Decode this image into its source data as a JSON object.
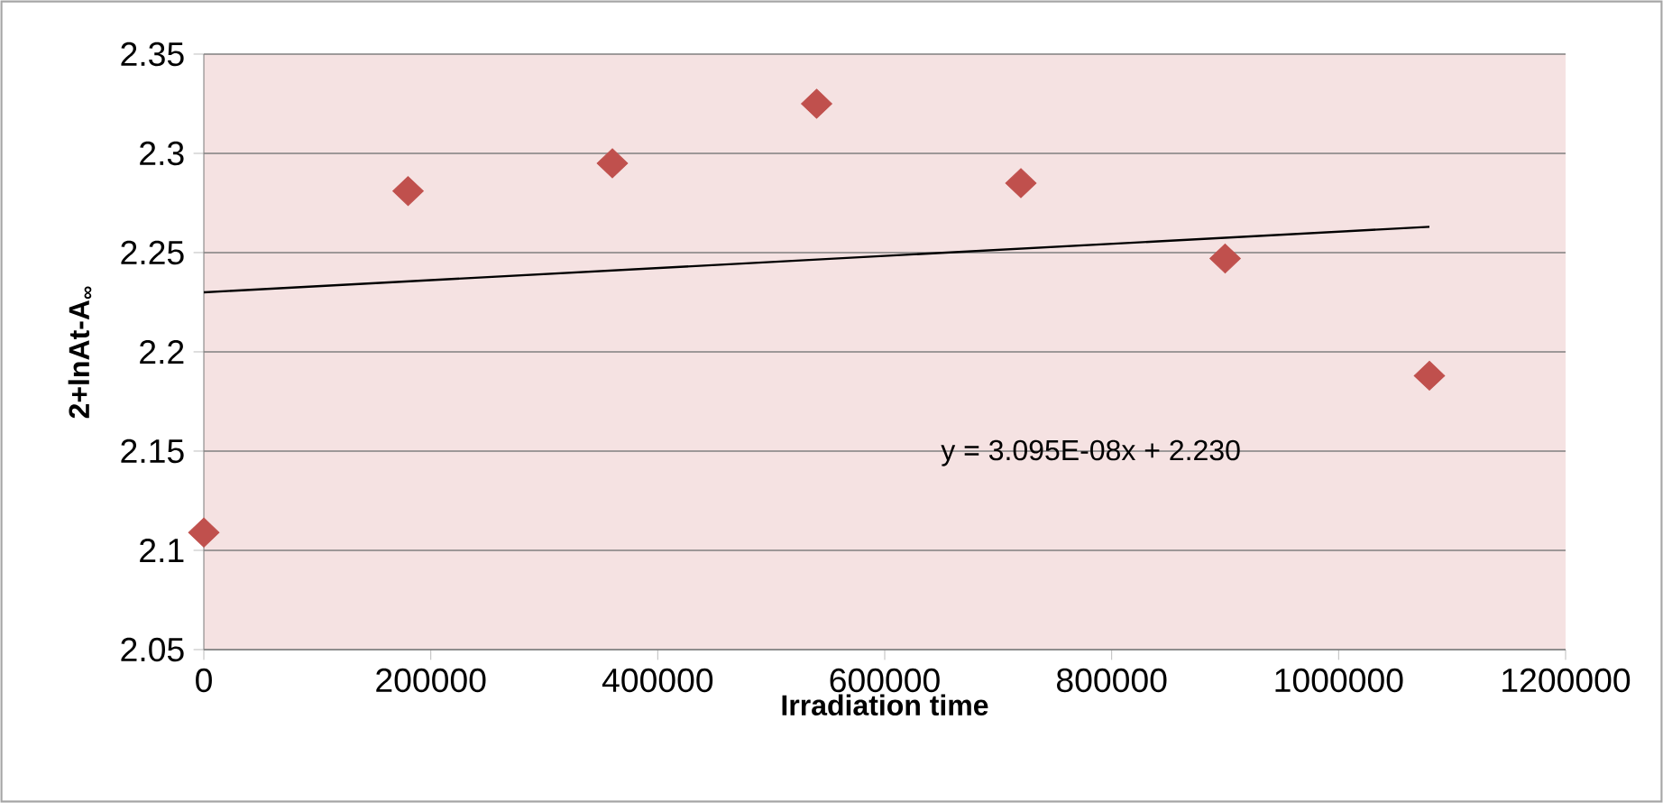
{
  "chart_data": {
    "type": "scatter",
    "xlabel": "Irradiation time",
    "ylabel": "2+lnAt-A$_{∞}$",
    "x": [
      0,
      180000,
      360000,
      540000,
      720000,
      900000,
      1080000
    ],
    "series": [
      {
        "color": "#c0504d",
        "marker": "diamond",
        "values": [
          2.109,
          2.281,
          2.295,
          2.325,
          2.285,
          2.247,
          2.188
        ]
      },
      {
        "type": "line",
        "color": "#000000",
        "x": [
          0,
          1080000
        ],
        "values": [
          2.23,
          2.263
        ]
      }
    ],
    "annotations": [
      "y = 3.095E-08x + 2.230"
    ],
    "xlim": [
      0,
      1200000
    ],
    "xticks": [
      0,
      200000,
      400000,
      600000,
      800000,
      1000000,
      1200000
    ],
    "ylim": [
      2.05,
      2.35
    ],
    "yticks": [
      2.05,
      2.1,
      2.15,
      2.2,
      2.25,
      2.3,
      2.35
    ],
    "grid": "y"
  }
}
